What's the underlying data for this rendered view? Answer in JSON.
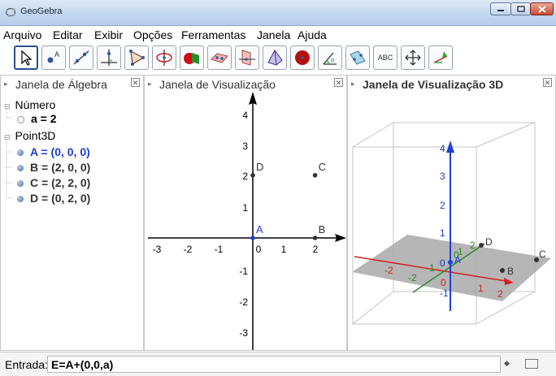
{
  "window": {
    "title": "GeoGebra"
  },
  "menu": [
    "Arquivo",
    "Editar",
    "Exibir",
    "Opções",
    "Ferramentas",
    "Janela",
    "Ajuda"
  ],
  "toolbar": {
    "tools": [
      "move-tool",
      "point-tool",
      "line-tool",
      "perpendicular-tool",
      "polygon-tool",
      "circle-tool",
      "intersect-solids-tool",
      "plane-tool",
      "plane-through-points-tool",
      "pyramid-tool",
      "sphere-tool",
      "angle-tool",
      "reflect-tool",
      "text-tool",
      "move-graphics-tool",
      "rotate-view-tool"
    ],
    "text_tool_label": "ABC"
  },
  "algebra": {
    "title": "Janela de Álgebra",
    "groups": [
      {
        "name": "Número",
        "items": [
          {
            "text": "a = 2",
            "color": "#000000"
          }
        ]
      },
      {
        "name": "Point3D",
        "items": [
          {
            "text": "A = (0, 0, 0)",
            "color": "#1f3fd6"
          },
          {
            "text": "B = (2, 0, 0)",
            "color": "#333333"
          },
          {
            "text": "C = (2, 2, 0)",
            "color": "#333333"
          },
          {
            "text": "D = (0, 2, 0)",
            "color": "#333333"
          }
        ]
      }
    ]
  },
  "graphics2d": {
    "title": "Janela de Visualização",
    "x_ticks": [
      "-3",
      "-2",
      "-1",
      "0",
      "1",
      "2"
    ],
    "y_ticks": [
      "4",
      "3",
      "2",
      "1",
      "-1",
      "-2",
      "-3"
    ],
    "points": [
      {
        "label": "A",
        "x": 0,
        "y": 0,
        "color": "#1f3fd6"
      },
      {
        "label": "B",
        "x": 2,
        "y": 0,
        "color": "#333333"
      },
      {
        "label": "C",
        "x": 2,
        "y": 2,
        "color": "#333333"
      },
      {
        "label": "D",
        "x": 0,
        "y": 2,
        "color": "#333333"
      }
    ]
  },
  "graphics3d": {
    "title": "Janela de Visualização 3D",
    "z_ticks": [
      "4",
      "3",
      "2",
      "1"
    ],
    "x_ticks": [
      "-2",
      "1",
      "2"
    ],
    "y_ticks": [
      "2",
      "1",
      "-1",
      "-2"
    ],
    "origin_labels": [
      "0",
      "0",
      "0"
    ],
    "neg_labels": [
      "-1"
    ],
    "point_labels": [
      "A",
      "B",
      "C",
      "D"
    ]
  },
  "input_bar": {
    "label": "Entrada:",
    "value": "E=A+(0,0,a)"
  }
}
